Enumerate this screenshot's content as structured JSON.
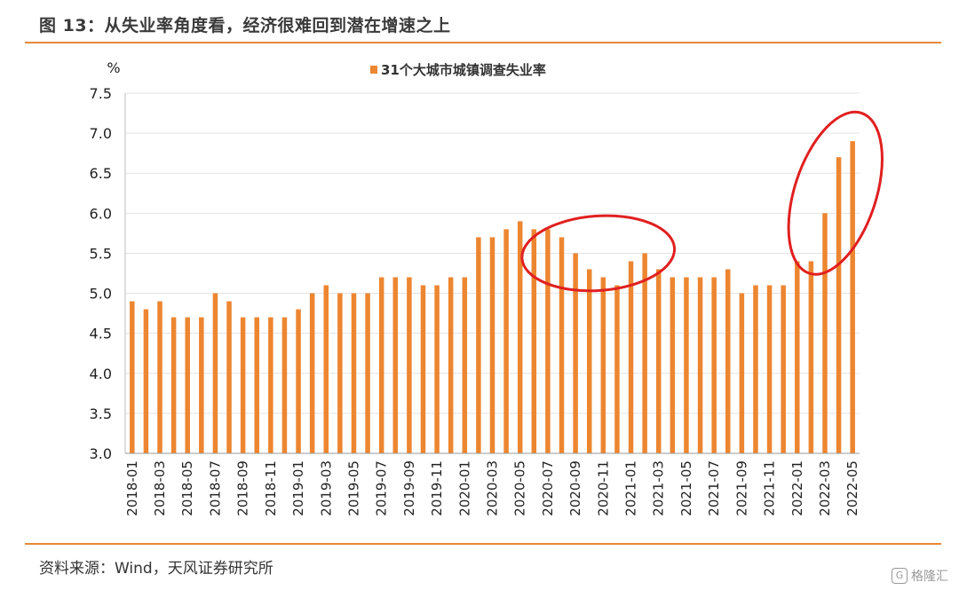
{
  "header": {
    "title": "图 13：从失业率角度看，经济很难回到潜在增速之上"
  },
  "footer": {
    "source": "资料来源：Wind，天风证券研究所",
    "watermark": "格隆汇"
  },
  "colors": {
    "bar": "#ED8631",
    "rule": "#E8883A",
    "highlight_ellipse": "#E02020"
  },
  "chart_data": {
    "type": "bar",
    "ylabel": "%",
    "ylim": [
      3.0,
      7.5
    ],
    "yticks": [
      "3.0",
      "3.5",
      "4.0",
      "4.5",
      "5.0",
      "5.5",
      "6.0",
      "6.5",
      "7.0",
      "7.5"
    ],
    "grid": true,
    "legend": "top-center",
    "series": [
      {
        "name": "31个大城市城镇调查失业率",
        "values": [
          4.9,
          4.8,
          4.9,
          4.7,
          4.7,
          4.7,
          5.0,
          4.9,
          4.7,
          4.7,
          4.7,
          4.7,
          4.8,
          5.0,
          5.1,
          5.0,
          5.0,
          5.0,
          5.2,
          5.2,
          5.2,
          5.1,
          5.1,
          5.2,
          5.2,
          5.7,
          5.7,
          5.8,
          5.9,
          5.8,
          5.8,
          5.7,
          5.5,
          5.3,
          5.2,
          5.1,
          5.4,
          5.5,
          5.3,
          5.2,
          5.2,
          5.2,
          5.2,
          5.3,
          5.0,
          5.1,
          5.1,
          5.1,
          5.4,
          5.4,
          6.0,
          6.7,
          6.9
        ]
      }
    ],
    "categories": [
      "2018-01",
      "2018-02",
      "2018-03",
      "2018-04",
      "2018-05",
      "2018-06",
      "2018-07",
      "2018-08",
      "2018-09",
      "2018-10",
      "2018-11",
      "2018-12",
      "2019-01",
      "2019-02",
      "2019-03",
      "2019-04",
      "2019-05",
      "2019-06",
      "2019-07",
      "2019-08",
      "2019-09",
      "2019-10",
      "2019-11",
      "2019-12",
      "2020-01",
      "2020-02",
      "2020-03",
      "2020-04",
      "2020-05",
      "2020-06",
      "2020-07",
      "2020-08",
      "2020-09",
      "2020-10",
      "2020-11",
      "2020-12",
      "2021-01",
      "2021-02",
      "2021-03",
      "2021-04",
      "2021-05",
      "2021-06",
      "2021-07",
      "2021-08",
      "2021-09",
      "2021-10",
      "2021-11",
      "2021-12",
      "2022-01",
      "2022-02",
      "2022-03",
      "2022-04",
      "2022-05"
    ],
    "xtick_labels_shown": [
      "2018-01",
      "2018-03",
      "2018-05",
      "2018-07",
      "2018-09",
      "2018-11",
      "2019-01",
      "2019-03",
      "2019-05",
      "2019-07",
      "2019-09",
      "2019-11",
      "2020-01",
      "2020-03",
      "2020-05",
      "2020-07",
      "2020-09",
      "2020-11",
      "2021-01",
      "2021-03",
      "2021-05",
      "2021-07",
      "2021-09",
      "2021-11",
      "2022-01",
      "2022-03",
      "2022-05"
    ],
    "annotations": [
      {
        "shape": "ellipse",
        "color": "#E02020",
        "span": [
          "2020-05",
          "2021-03"
        ]
      },
      {
        "shape": "ellipse",
        "color": "#E02020",
        "span": [
          "2022-02",
          "2022-05"
        ]
      }
    ]
  }
}
